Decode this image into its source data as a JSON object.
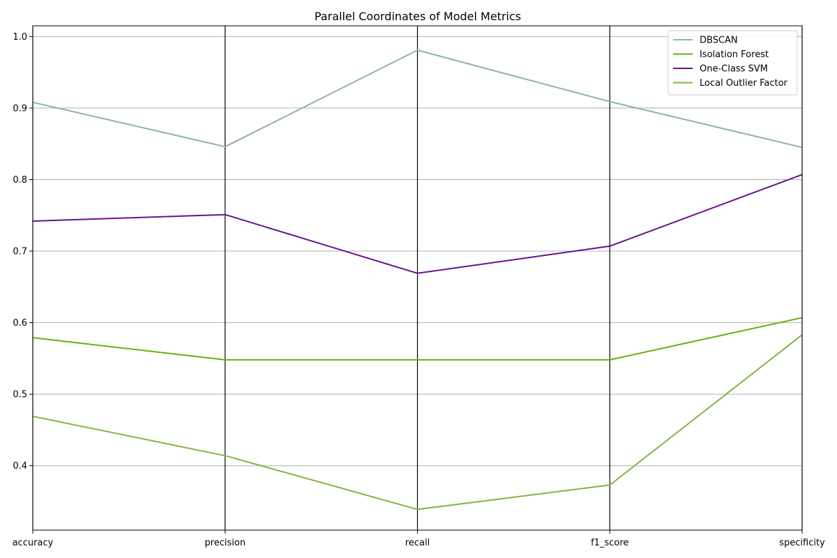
{
  "chart_data": {
    "type": "line",
    "title": "Parallel Coordinates of Model Metrics",
    "categories": [
      "accuracy",
      "precision",
      "recall",
      "f1_score",
      "specificity"
    ],
    "ylim": [
      0.31,
      1.015
    ],
    "yticks": [
      0.4,
      0.5,
      0.6,
      0.7,
      0.8,
      0.9,
      1.0
    ],
    "ytick_labels": [
      "0.4",
      "0.5",
      "0.6",
      "0.7",
      "0.8",
      "0.9",
      "1.0"
    ],
    "grid": true,
    "legend_position": "top-right",
    "series": [
      {
        "name": "DBSCAN",
        "color": "#8fb59b",
        "values": [
          0.908,
          0.846,
          0.981,
          0.909,
          0.845
        ]
      },
      {
        "name": "Isolation Forest",
        "color": "#6aaf12",
        "values": [
          0.579,
          0.548,
          0.548,
          0.548,
          0.607
        ]
      },
      {
        "name": "One-Class SVM",
        "color": "#6a0f8a",
        "values": [
          0.742,
          0.751,
          0.669,
          0.707,
          0.807
        ]
      },
      {
        "name": "Local Outlier Factor",
        "color": "#86b347",
        "values": [
          0.469,
          0.414,
          0.339,
          0.373,
          0.583
        ]
      }
    ]
  }
}
